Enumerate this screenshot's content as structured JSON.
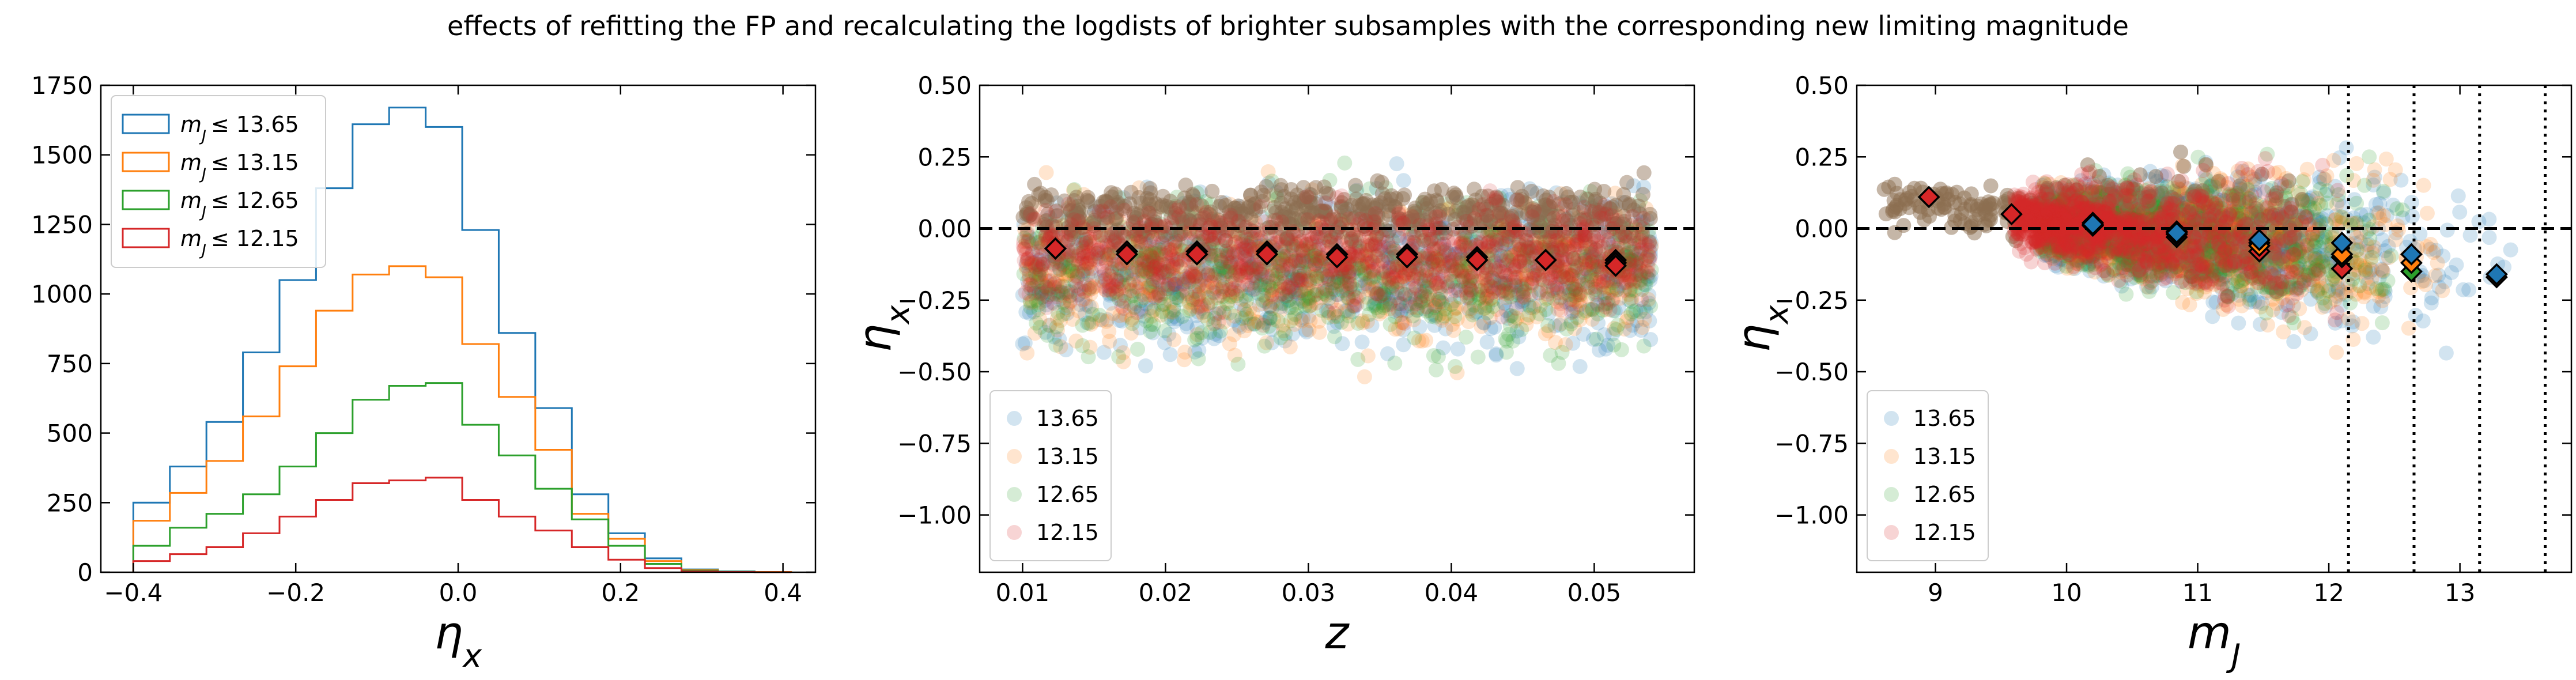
{
  "suptitle": "effects of refitting the FP and recalculating the logdists of brighter subsamples with the corresponding new limiting magnitude",
  "colors": {
    "13.65": "#1f77b4",
    "13.15": "#ff7f0e",
    "12.65": "#2ca02c",
    "12.15": "#d62728",
    "brown": "#8c6d4f",
    "diamond_edge": "#000000"
  },
  "chart_data": [
    {
      "type": "step-histogram",
      "xlabel": "η_x",
      "ylabel": "",
      "xlim": [
        -0.44,
        0.44
      ],
      "ylim": [
        0,
        1750
      ],
      "xticks": [
        "−0.4",
        "−0.2",
        "0.0",
        "0.2",
        "0.4"
      ],
      "yticks": [
        "0",
        "250",
        "500",
        "750",
        "1000",
        "1250",
        "1500",
        "1750"
      ],
      "legend": {
        "placement": "top-left"
      },
      "bin_edges": [
        -0.4,
        -0.355,
        -0.31,
        -0.265,
        -0.22,
        -0.175,
        -0.13,
        -0.085,
        -0.04,
        0.005,
        0.05,
        0.095,
        0.14,
        0.185,
        0.23,
        0.275,
        0.32,
        0.365,
        0.41
      ],
      "series": [
        {
          "name": "m_J ≤ 13.65",
          "sub": "J",
          "limit": "13.65",
          "color_key": "13.65",
          "values": [
            250,
            380,
            540,
            790,
            1050,
            1380,
            1610,
            1670,
            1600,
            1230,
            860,
            590,
            280,
            140,
            50,
            10,
            3,
            1
          ]
        },
        {
          "name": "m_J ≤ 13.15",
          "sub": "J",
          "limit": "13.15",
          "color_key": "13.15",
          "values": [
            185,
            285,
            400,
            560,
            740,
            940,
            1070,
            1100,
            1060,
            820,
            630,
            440,
            210,
            120,
            40,
            8,
            2,
            1
          ]
        },
        {
          "name": "m_J ≤ 12.65",
          "sub": "J",
          "limit": "12.65",
          "color_key": "12.65",
          "values": [
            95,
            160,
            210,
            280,
            380,
            500,
            620,
            670,
            680,
            530,
            420,
            300,
            190,
            95,
            30,
            6,
            2,
            0
          ]
        },
        {
          "name": "m_J ≤ 12.15",
          "sub": "J",
          "limit": "12.15",
          "color_key": "12.15",
          "values": [
            40,
            65,
            90,
            140,
            200,
            260,
            320,
            330,
            340,
            260,
            200,
            150,
            90,
            45,
            15,
            3,
            1,
            0
          ]
        }
      ]
    },
    {
      "type": "scatter",
      "xlabel": "z",
      "ylabel": "η_x",
      "xlim": [
        0.007,
        0.057
      ],
      "ylim": [
        -1.2,
        0.5
      ],
      "xticks": [
        "0.01",
        "0.02",
        "0.03",
        "0.04",
        "0.05"
      ],
      "yticks": [
        "0.50",
        "0.25",
        "0.00",
        "−0.25",
        "−0.50",
        "−0.75",
        "−1.00"
      ],
      "reference_line_y": 0,
      "legend": {
        "placement": "bottom-left",
        "entries": [
          "13.65",
          "13.15",
          "12.65",
          "12.15"
        ]
      },
      "scatter_cloud": {
        "x_range": [
          0.01,
          0.054
        ],
        "y_center": -0.1,
        "y_spread": 0.18
      },
      "binned_means": {
        "x": [
          0.0123,
          0.0173,
          0.0222,
          0.0271,
          0.032,
          0.0369,
          0.0418,
          0.0466,
          0.0515
        ],
        "series": [
          {
            "name": "13.65",
            "values": [
              -0.07,
              -0.08,
              -0.08,
              -0.08,
              -0.09,
              -0.09,
              -0.1,
              -0.11,
              -0.11
            ]
          },
          {
            "name": "13.15",
            "values": [
              -0.07,
              -0.08,
              -0.08,
              -0.08,
              -0.09,
              -0.09,
              -0.1,
              -0.11,
              -0.12
            ]
          },
          {
            "name": "12.65",
            "values": [
              -0.07,
              -0.08,
              -0.09,
              -0.09,
              -0.09,
              -0.1,
              -0.11,
              -0.11,
              -0.12
            ]
          },
          {
            "name": "12.15",
            "values": [
              -0.07,
              -0.09,
              -0.09,
              -0.09,
              -0.1,
              -0.1,
              -0.11,
              -0.11,
              -0.13
            ]
          }
        ]
      }
    },
    {
      "type": "scatter",
      "xlabel": "m_J",
      "ylabel": "η_x",
      "xlim": [
        8.4,
        13.85
      ],
      "ylim": [
        -1.2,
        0.5
      ],
      "xticks": [
        "9",
        "10",
        "11",
        "12",
        "13"
      ],
      "yticks": [
        "0.50",
        "0.25",
        "0.00",
        "−0.25",
        "−0.50",
        "−0.75",
        "−1.00"
      ],
      "reference_line_y": 0,
      "vertical_lines_x": [
        12.15,
        12.65,
        13.15,
        13.65
      ],
      "legend": {
        "placement": "bottom-left",
        "entries": [
          "13.65",
          "13.15",
          "12.65",
          "12.15"
        ]
      },
      "binned_means": {
        "series": [
          {
            "name": "12.15",
            "points": [
              [
                8.95,
                0.11
              ],
              [
                9.58,
                0.05
              ],
              [
                10.2,
                0.01
              ],
              [
                10.84,
                -0.03
              ],
              [
                11.47,
                -0.08
              ],
              [
                12.1,
                -0.14
              ]
            ]
          },
          {
            "name": "12.65",
            "points": [
              [
                10.2,
                0.02
              ],
              [
                10.84,
                -0.01
              ],
              [
                11.47,
                -0.05
              ],
              [
                12.1,
                -0.1
              ],
              [
                12.63,
                -0.15
              ]
            ]
          },
          {
            "name": "13.15",
            "points": [
              [
                10.2,
                0.01
              ],
              [
                10.84,
                -0.02
              ],
              [
                11.47,
                -0.06
              ],
              [
                12.1,
                -0.09
              ],
              [
                12.63,
                -0.12
              ],
              [
                13.28,
                -0.17
              ]
            ]
          },
          {
            "name": "13.65",
            "points": [
              [
                10.2,
                0.015
              ],
              [
                10.84,
                -0.015
              ],
              [
                11.47,
                -0.04
              ],
              [
                12.1,
                -0.05
              ],
              [
                12.63,
                -0.09
              ],
              [
                13.28,
                -0.16
              ]
            ]
          }
        ]
      }
    }
  ]
}
